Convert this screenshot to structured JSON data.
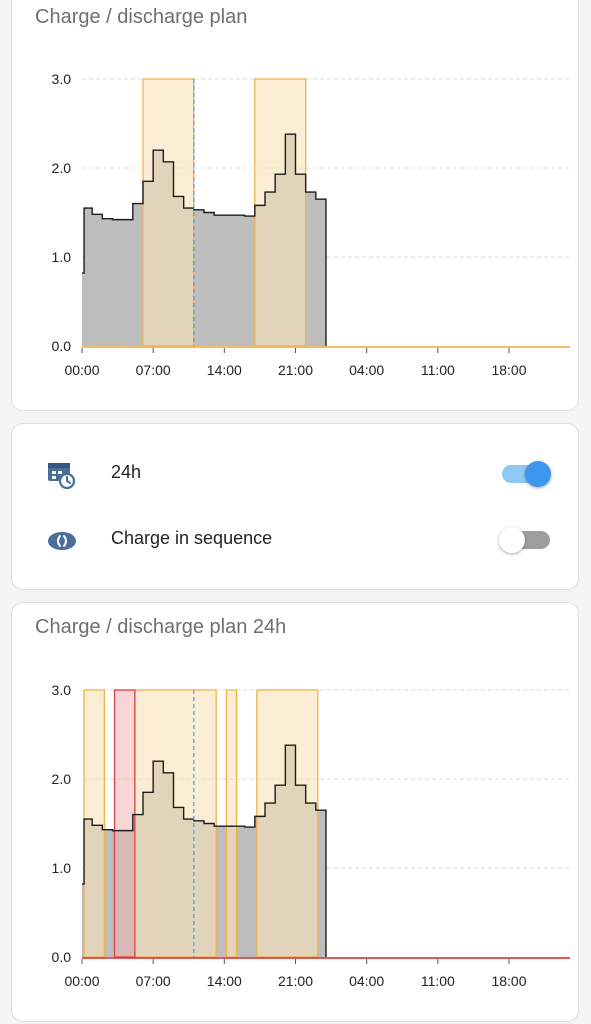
{
  "colors": {
    "charge_fill": "#f8e3b8",
    "charge_stroke": "#f0b24a",
    "discharge_fill": "#f4b4b4",
    "discharge_stroke": "#de4040",
    "consumption_fill": "#bdbdbd",
    "consumption_stroke": "#1c1c1c",
    "now_line": "#3aa0ee",
    "grid": "#dddddd",
    "toggle_on": "#3c95ef",
    "toggle_off": "#9e9e9e",
    "icon_blue": "#4a6d9c"
  },
  "card1": {
    "title": "Charge / discharge plan"
  },
  "settings": {
    "rows": [
      {
        "label": "24h",
        "icon": "calendar-clock-icon",
        "toggle_on": true
      },
      {
        "label": "Charge in sequence",
        "icon": "sequence-icon",
        "toggle_on": false
      }
    ]
  },
  "card3": {
    "title": "Charge / discharge plan 24h"
  },
  "chart_data": [
    {
      "type": "area",
      "title": "Charge / discharge plan",
      "x_tick_labels": [
        "00:00",
        "07:00",
        "14:00",
        "21:00",
        "04:00",
        "11:00",
        "18:00"
      ],
      "y_tick_labels": [
        "0.0",
        "1.0",
        "2.0",
        "3.0"
      ],
      "ylim": [
        0,
        3
      ],
      "x_unit": "hours from 00:00",
      "xlim": [
        0,
        48
      ],
      "grid": true,
      "now_marker_hour": 11,
      "consumption": {
        "hours": [
          0,
          0.2,
          1,
          2,
          3,
          5,
          6,
          7,
          8,
          9,
          10,
          11,
          12,
          13,
          14,
          15,
          16,
          17,
          18,
          19,
          20,
          21,
          22,
          23
        ],
        "values": [
          0.82,
          1.55,
          1.48,
          1.43,
          1.42,
          1.6,
          1.85,
          2.2,
          2.07,
          1.68,
          1.55,
          1.53,
          1.5,
          1.47,
          1.47,
          1.47,
          1.46,
          1.58,
          1.73,
          1.93,
          2.38,
          1.93,
          1.73,
          1.65
        ]
      },
      "charge_windows": [
        {
          "start_hour": 6,
          "end_hour": 11,
          "level": 3.0
        },
        {
          "start_hour": 17,
          "end_hour": 22,
          "level": 3.0
        }
      ],
      "discharge_windows": []
    },
    {
      "type": "area",
      "title": "Charge / discharge plan 24h",
      "x_tick_labels": [
        "00:00",
        "07:00",
        "14:00",
        "21:00",
        "04:00",
        "11:00",
        "18:00"
      ],
      "y_tick_labels": [
        "0.0",
        "1.0",
        "2.0",
        "3.0"
      ],
      "ylim": [
        0,
        3
      ],
      "x_unit": "hours from 00:00",
      "xlim": [
        0,
        48
      ],
      "grid": true,
      "now_marker_hour": 11,
      "consumption": {
        "hours": [
          0,
          0.2,
          1,
          2,
          3,
          5,
          6,
          7,
          8,
          9,
          10,
          11,
          12,
          13,
          14,
          15,
          16,
          17,
          18,
          19,
          20,
          21,
          22,
          23
        ],
        "values": [
          0.82,
          1.55,
          1.48,
          1.43,
          1.42,
          1.6,
          1.85,
          2.2,
          2.07,
          1.68,
          1.55,
          1.53,
          1.5,
          1.47,
          1.47,
          1.47,
          1.46,
          1.58,
          1.73,
          1.93,
          2.38,
          1.93,
          1.73,
          1.65
        ]
      },
      "charge_windows": [
        {
          "start_hour": 0.2,
          "end_hour": 2.2,
          "level": 3.0
        },
        {
          "start_hour": 5.2,
          "end_hour": 13.2,
          "level": 3.0
        },
        {
          "start_hour": 14.2,
          "end_hour": 15.2,
          "level": 3.0
        },
        {
          "start_hour": 17.2,
          "end_hour": 23.2,
          "level": 3.0
        }
      ],
      "discharge_windows": [
        {
          "start_hour": 3.2,
          "end_hour": 5.2,
          "level": 3.0
        }
      ]
    }
  ]
}
